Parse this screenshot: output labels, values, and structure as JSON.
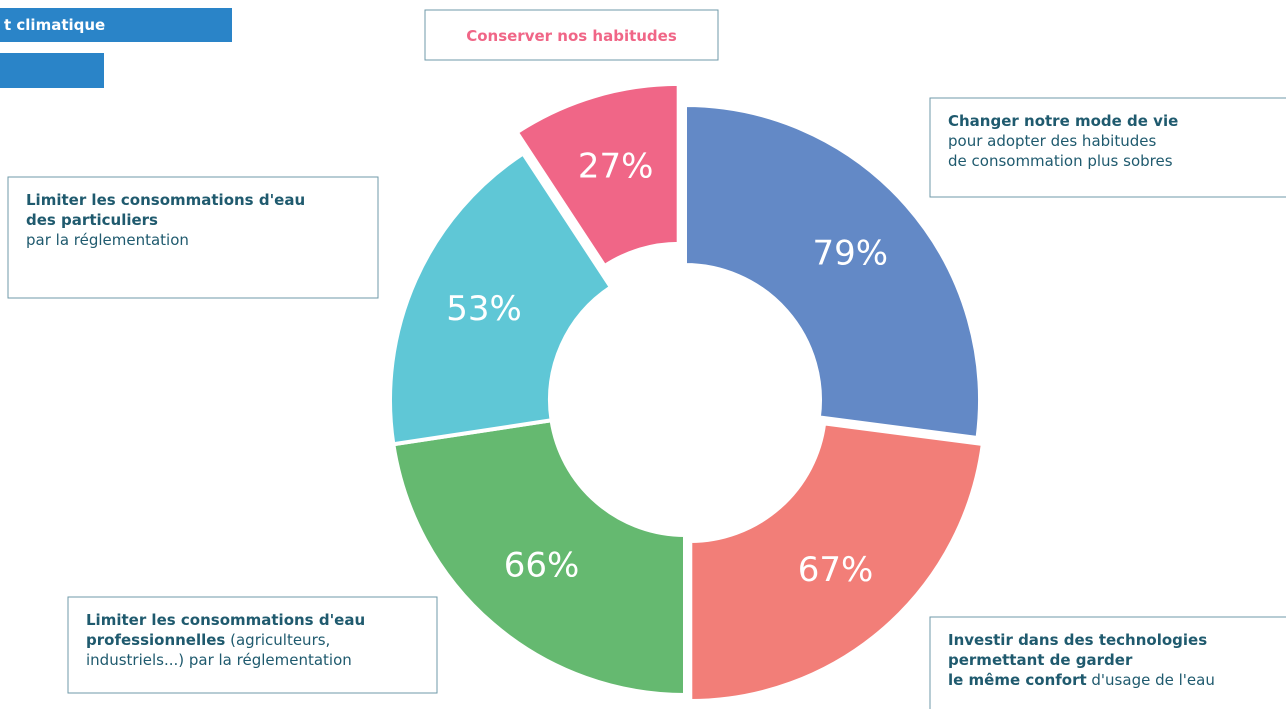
{
  "header_text": "t climatique",
  "chart_data": {
    "type": "donut",
    "categories": [
      "Changer notre mode de vie",
      "Investir dans des technologies",
      "Limiter les consommations d'eau professionnelles",
      "Limiter les consommations d'eau des particuliers",
      "Conserver nos habitudes"
    ],
    "values": [
      79,
      67,
      66,
      53,
      27
    ],
    "value_labels": [
      "79%",
      "67%",
      "66%",
      "53%",
      "27%"
    ],
    "colors": [
      "#6389c6",
      "#f27e78",
      "#65b970",
      "#5fc7d6",
      "#f06687"
    ],
    "labels": [
      [
        [
          {
            "text": "Changer notre mode de vie",
            "bold": true
          }
        ],
        [
          {
            "text": "pour adopter des habitudes",
            "bold": false
          }
        ],
        [
          {
            "text": "de consommation plus sobres",
            "bold": false
          }
        ]
      ],
      [
        [
          {
            "text": "Investir dans des technologies",
            "bold": true
          }
        ],
        [
          {
            "text": "permettant de garder",
            "bold": true
          }
        ],
        [
          {
            "text": "le même confort",
            "bold": true
          },
          {
            "text": " d'usage de l'eau",
            "bold": false
          }
        ]
      ],
      [
        [
          {
            "text": "Limiter les consommations d'eau",
            "bold": true
          }
        ],
        [
          {
            "text": "professionnelles",
            "bold": true
          },
          {
            "text": " (agriculteurs,",
            "bold": false
          }
        ],
        [
          {
            "text": "industriels...) par la réglementation",
            "bold": false
          }
        ]
      ],
      [
        [
          {
            "text": "Limiter les consommations d'eau",
            "bold": true
          }
        ],
        [
          {
            "text": "des particuliers",
            "bold": true
          }
        ],
        [
          {
            "text": "par la réglementation",
            "bold": false
          }
        ]
      ],
      [
        [
          {
            "text": "Conserver nos habitudes",
            "bold": true
          }
        ]
      ]
    ]
  }
}
